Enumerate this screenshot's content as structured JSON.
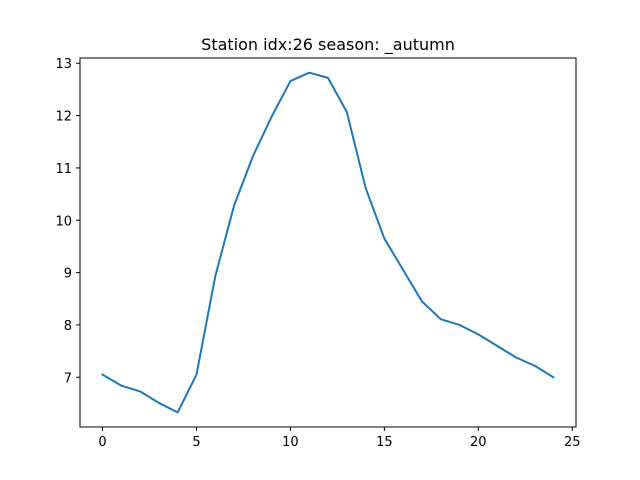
{
  "chart_data": {
    "type": "line",
    "title": "Station idx:26 season: _autumn",
    "xlabel": "",
    "ylabel": "",
    "xlim": [
      -1.2,
      25.2
    ],
    "ylim": [
      6.05,
      13.1
    ],
    "xticks": [
      0,
      5,
      10,
      15,
      20,
      25
    ],
    "yticks": [
      7,
      8,
      9,
      10,
      11,
      12,
      13
    ],
    "grid": false,
    "legend": "none",
    "series": [
      {
        "color": "#1f77b4",
        "x": [
          0,
          1,
          2,
          3,
          4,
          5,
          6,
          7,
          8,
          9,
          10,
          11,
          12,
          13,
          14,
          15,
          16,
          17,
          18,
          19,
          20,
          21,
          22,
          23,
          24
        ],
        "y": [
          7.05,
          6.84,
          6.73,
          6.51,
          6.33,
          7.05,
          8.93,
          10.28,
          11.22,
          11.98,
          12.66,
          12.82,
          12.72,
          12.07,
          10.62,
          9.65,
          9.05,
          8.45,
          8.11,
          8.0,
          7.82,
          7.6,
          7.38,
          7.22,
          7.0
        ]
      }
    ]
  }
}
